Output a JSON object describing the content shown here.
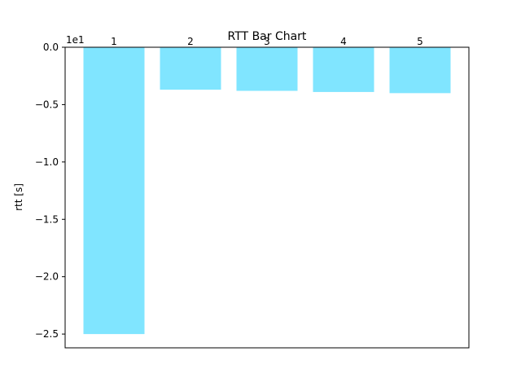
{
  "chart_data": {
    "type": "bar",
    "title": "RTT Bar Chart",
    "ylabel": "rtt [s]",
    "xlabel": "",
    "offset_label": "1e1",
    "categories": [
      "1",
      "2",
      "3",
      "4",
      "5"
    ],
    "values": [
      -2.5,
      -0.37,
      -0.38,
      -0.39,
      -0.4
    ],
    "ylim": [
      -2.62,
      0.0
    ],
    "yticks": [
      0.0,
      -0.5,
      -1.0,
      -1.5,
      -2.0,
      -2.5
    ],
    "ytick_labels": [
      "0.0",
      "−0.5",
      "−1.0",
      "−1.5",
      "−2.0",
      "−2.5"
    ],
    "bar_color": "#80e5ff",
    "grid": false,
    "legend": "none"
  }
}
